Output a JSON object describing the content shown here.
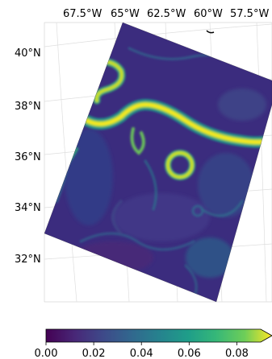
{
  "map": {
    "longitude_labels": [
      "67.5°W",
      "65°W",
      "62.5°W",
      "60°W",
      "57.5°W"
    ],
    "latitude_labels": [
      "40°N",
      "38°N",
      "36°N",
      "34°N",
      "32°N"
    ]
  },
  "colorbar": {
    "colormap": "viridis",
    "range": [
      0.0,
      0.09
    ],
    "extend": "max",
    "ticks": [
      0.0,
      0.02,
      0.04,
      0.06,
      0.08
    ],
    "tick_labels": [
      "0.00",
      "0.02",
      "0.04",
      "0.06",
      "0.08"
    ]
  },
  "colors": {
    "viridis_low": "#440154",
    "viridis_mid": "#21918c",
    "viridis_high": "#fde725",
    "gridline": "#d9d9d9"
  }
}
